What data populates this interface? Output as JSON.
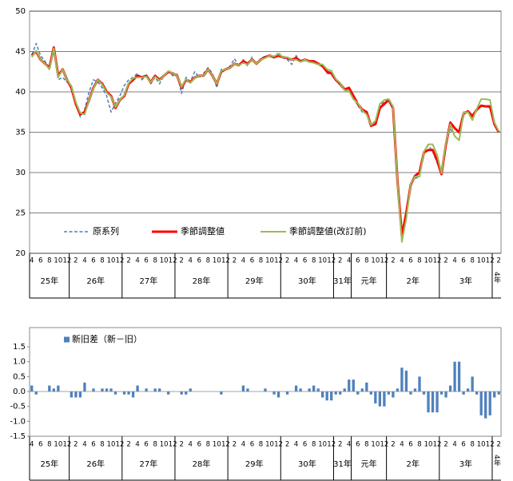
{
  "chart_data": [
    {
      "type": "line",
      "categories": [
        "4",
        null,
        "6",
        null,
        "8",
        null,
        "10",
        null,
        "12",
        null,
        "2",
        null,
        "4",
        null,
        "6",
        null,
        "8",
        null,
        "10",
        null,
        "12",
        null,
        "2",
        null,
        "4",
        null,
        "6",
        null,
        "8",
        null,
        "10",
        null,
        "12",
        null,
        "2",
        null,
        "4",
        null,
        "6",
        null,
        "8",
        null,
        "10",
        null,
        "12",
        null,
        "2",
        null,
        "4",
        null,
        "6",
        null,
        "8",
        null,
        "10",
        null,
        "12",
        null,
        "2",
        null,
        "4",
        null,
        "6",
        null,
        "8",
        null,
        "10",
        null,
        "12",
        null,
        "2",
        null,
        "4",
        null,
        "6",
        null,
        "8",
        null,
        "10",
        null,
        "12",
        null,
        "2",
        null,
        "4",
        null,
        "6",
        null,
        "8",
        null,
        "10",
        null,
        "12",
        null,
        "2",
        null,
        "4",
        null,
        "6",
        null,
        "8",
        null,
        "10",
        null,
        "12",
        null,
        "2"
      ],
      "years": [
        "25年",
        null,
        null,
        null,
        null,
        null,
        null,
        null,
        null,
        "26年",
        null,
        null,
        null,
        null,
        null,
        null,
        null,
        null,
        null,
        null,
        null,
        "27年",
        null,
        null,
        null,
        null,
        null,
        null,
        null,
        null,
        null,
        null,
        null,
        "28年",
        null,
        null,
        null,
        null,
        null,
        null,
        null,
        null,
        null,
        null,
        null,
        "29年",
        null,
        null,
        null,
        null,
        null,
        null,
        null,
        null,
        null,
        null,
        null,
        "30年",
        null,
        null,
        null,
        null,
        null,
        null,
        null,
        null,
        null,
        null,
        null,
        "31年",
        null,
        null,
        null,
        "元年",
        null,
        null,
        null,
        null,
        null,
        null,
        null,
        "2年",
        null,
        null,
        null,
        null,
        null,
        null,
        null,
        null,
        null,
        null,
        null,
        "3年",
        null,
        null,
        null,
        null,
        null,
        null,
        null,
        null,
        null,
        null,
        null,
        "4年",
        null
      ],
      "ylim": [
        20,
        50
      ],
      "yticks": [
        20,
        25,
        30,
        35,
        40,
        45,
        50
      ],
      "grid": true,
      "series": [
        {
          "name": "原系列",
          "color": "#4a7ebb",
          "dashed": true,
          "values": [
            44.6,
            46,
            44.5,
            43.8,
            42.8,
            45.3,
            41.5,
            41.8,
            41.2,
            40.8,
            38.5,
            36.9,
            37.8,
            40,
            41.5,
            41.2,
            40.5,
            39.5,
            37.5,
            38.6,
            39.5,
            40.8,
            41.5,
            41.8,
            42.3,
            41.5,
            42,
            41,
            41.8,
            41,
            42,
            42.6,
            42,
            42.2,
            39.8,
            41.8,
            41.3,
            42.5,
            41.8,
            42.3,
            43,
            42.3,
            40.5,
            42.8,
            42.8,
            43.2,
            44.1,
            43.2,
            44,
            43.2,
            44.3,
            43.4,
            44.2,
            44.4,
            44.5,
            44.2,
            44.9,
            44.2,
            44,
            43.4,
            44.5,
            43.7,
            43.9,
            43.7,
            43.8,
            43.4,
            43.3,
            42.3,
            42.2,
            41.5,
            40.8,
            40.2,
            40.6,
            39.4,
            38.3,
            37.5,
            37.3,
            35.7,
            36.2,
            38.3,
            38.8,
            39.2,
            38.2,
            29,
            21.8,
            25.2,
            28.5,
            29.3,
            29.4,
            32.5,
            33.4,
            32.6,
            31.2,
            29.8,
            33.5,
            35.5,
            34.5,
            34,
            37.5,
            37.5,
            36.9,
            37.8,
            38.2,
            38.3,
            38,
            36.3,
            35.1
          ]
        },
        {
          "name": "季節調整値",
          "color": "#ff0000",
          "width": 3,
          "values": [
            44.5,
            45,
            44,
            43.5,
            43,
            45.5,
            42,
            42.8,
            41.5,
            40.5,
            38.5,
            37.2,
            37.5,
            39,
            40.5,
            41.5,
            41,
            40,
            39.5,
            38,
            39,
            39.5,
            41,
            41.5,
            42,
            41.8,
            42,
            41.2,
            42,
            41.5,
            42,
            42.5,
            42.3,
            42,
            40.5,
            41.5,
            41.2,
            41.8,
            42,
            42,
            42.8,
            42,
            41,
            42.5,
            42.8,
            43,
            43.5,
            43.3,
            43.8,
            43.5,
            44,
            43.5,
            44,
            44.3,
            44.5,
            44.3,
            44.5,
            44.3,
            44.2,
            44,
            44.2,
            43.8,
            44,
            43.8,
            43.8,
            43.5,
            43.2,
            42.5,
            42.3,
            41.5,
            41,
            40.3,
            40.5,
            39.5,
            38.5,
            37.8,
            37.5,
            35.8,
            36,
            38,
            38.5,
            39,
            38,
            29,
            22.2,
            25,
            28.5,
            29.6,
            30,
            32.5,
            32.8,
            32.8,
            31.5,
            29.8,
            33.5,
            36.2,
            35.5,
            35,
            37.3,
            37.6,
            37,
            37.8,
            38.3,
            38.2,
            38.2,
            36,
            35
          ]
        },
        {
          "name": "季節調整値(改訂前)",
          "color": "#9bbb59",
          "width": 2,
          "values": [
            44.3,
            45.1,
            44,
            43.5,
            42.8,
            45.4,
            41.8,
            42.8,
            41.5,
            40.7,
            38.7,
            37.4,
            37.2,
            39,
            40.4,
            41.5,
            40.9,
            39.9,
            39.4,
            38.1,
            39,
            39.6,
            41.1,
            41.7,
            41.8,
            41.8,
            41.9,
            41.2,
            41.9,
            41.4,
            42,
            42.6,
            42.3,
            42,
            40.6,
            41.6,
            41.1,
            41.8,
            42,
            42,
            42.8,
            42,
            41,
            42.6,
            42.8,
            43,
            43.5,
            43.3,
            43.6,
            43.4,
            44,
            43.5,
            44,
            44.2,
            44.5,
            44.4,
            44.7,
            44.3,
            44.3,
            44,
            44,
            43.7,
            44,
            43.7,
            43.6,
            43.4,
            43.4,
            42.8,
            42.6,
            41.6,
            41.1,
            40.2,
            40.1,
            39.1,
            38.6,
            37.7,
            37.2,
            35.9,
            36.4,
            38.5,
            39,
            39.1,
            38.2,
            28.9,
            21.4,
            24.3,
            28.6,
            29.5,
            29.5,
            32.6,
            33.5,
            33.5,
            32.2,
            29.9,
            33.7,
            36,
            34.5,
            34,
            37.4,
            37.5,
            36.5,
            37.9,
            39.1,
            39.1,
            39,
            36.2,
            35.1
          ]
        }
      ]
    },
    {
      "type": "bar",
      "categories": [
        "4",
        null,
        "6",
        null,
        "8",
        null,
        "10",
        null,
        "12",
        null,
        "2",
        null,
        "4",
        null,
        "6",
        null,
        "8",
        null,
        "10",
        null,
        "12",
        null,
        "2",
        null,
        "4",
        null,
        "6",
        null,
        "8",
        null,
        "10",
        null,
        "12",
        null,
        "2",
        null,
        "4",
        null,
        "6",
        null,
        "8",
        null,
        "10",
        null,
        "12",
        null,
        "2",
        null,
        "4",
        null,
        "6",
        null,
        "8",
        null,
        "10",
        null,
        "12",
        null,
        "2",
        null,
        "4",
        null,
        "6",
        null,
        "8",
        null,
        "10",
        null,
        "12",
        null,
        "2",
        null,
        "4",
        null,
        "6",
        null,
        "8",
        null,
        "10",
        null,
        "12",
        null,
        "2",
        null,
        "4",
        null,
        "6",
        null,
        "8",
        null,
        "10",
        null,
        "12",
        null,
        "2",
        null,
        "4",
        null,
        "6",
        null,
        "8",
        null,
        "10",
        null,
        "12",
        null,
        "2"
      ],
      "years": [
        "25年",
        null,
        null,
        null,
        null,
        null,
        null,
        null,
        null,
        "26年",
        null,
        null,
        null,
        null,
        null,
        null,
        null,
        null,
        null,
        null,
        null,
        "27年",
        null,
        null,
        null,
        null,
        null,
        null,
        null,
        null,
        null,
        null,
        null,
        "28年",
        null,
        null,
        null,
        null,
        null,
        null,
        null,
        null,
        null,
        null,
        null,
        "29年",
        null,
        null,
        null,
        null,
        null,
        null,
        null,
        null,
        null,
        null,
        null,
        "30年",
        null,
        null,
        null,
        null,
        null,
        null,
        null,
        null,
        null,
        null,
        null,
        "31年",
        null,
        null,
        null,
        "元年",
        null,
        null,
        null,
        null,
        null,
        null,
        null,
        "2年",
        null,
        null,
        null,
        null,
        null,
        null,
        null,
        null,
        null,
        null,
        null,
        "3年",
        null,
        null,
        null,
        null,
        null,
        null,
        null,
        null,
        null,
        null,
        null,
        "4年",
        null
      ],
      "ylim": [
        -1.5,
        1.5
      ],
      "yticks": [
        -1.5,
        {
          "value": -1,
          "label": "-1.0"
        },
        -0.5,
        {
          "value": 0,
          "label": "0.0"
        },
        0.5,
        {
          "value": 1,
          "label": "1.0"
        },
        1.5
      ],
      "grid": false,
      "series": [
        {
          "name": "新旧差（新－旧）",
          "color": "#4f81bd",
          "values": [
            0.2,
            -0.1,
            0,
            0,
            0.2,
            0.1,
            0.2,
            0,
            0,
            -0.2,
            -0.2,
            -0.2,
            0.3,
            0,
            0.1,
            0,
            0.1,
            0.1,
            0.1,
            -0.1,
            0,
            -0.1,
            -0.1,
            -0.2,
            0.2,
            0,
            0.1,
            0,
            0.1,
            0.1,
            0,
            -0.1,
            0,
            0,
            -0.1,
            -0.1,
            0.1,
            0,
            0,
            0,
            0,
            0,
            0,
            -0.1,
            0,
            0,
            0,
            0,
            0.2,
            0.1,
            0,
            0,
            0,
            0.1,
            0,
            -0.1,
            -0.2,
            0,
            -0.1,
            0,
            0.2,
            0.1,
            0,
            0.1,
            0.2,
            0.1,
            -0.2,
            -0.3,
            -0.3,
            -0.1,
            -0.1,
            0.1,
            0.4,
            0.4,
            -0.1,
            0.1,
            0.3,
            -0.1,
            -0.4,
            -0.5,
            -0.5,
            -0.1,
            -0.2,
            0.1,
            0.8,
            0.7,
            -0.1,
            0.1,
            0.5,
            -0.1,
            -0.7,
            -0.7,
            -0.7,
            -0.1,
            -0.2,
            0.2,
            1,
            1,
            -0.1,
            0.1,
            0.5,
            -0.1,
            -0.8,
            -0.9,
            -0.8,
            -0.2,
            -0.1
          ]
        }
      ]
    }
  ]
}
